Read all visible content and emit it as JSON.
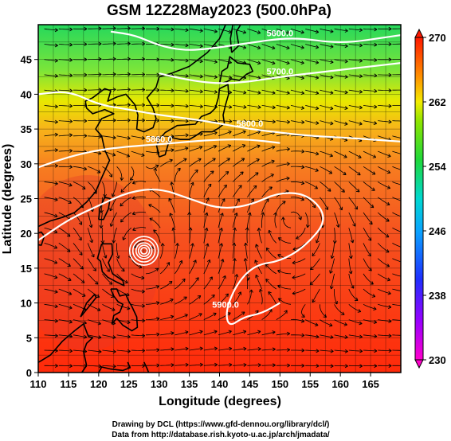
{
  "figure": {
    "title": "GSM 12Z28May2023 (500.0hPa)",
    "xlabel": "Longitude (degrees)",
    "ylabel": "Latitude  (degrees)",
    "credit_line1": "Drawing by DCL (https://www.gfd-dennou.org/library/dcl/)",
    "credit_line2": "Data from http://database.rish.kyoto-u.ac.jp/arch/jmadata/"
  },
  "map": {
    "lon_range": [
      110,
      170
    ],
    "lat_range": [
      0,
      50
    ],
    "lon_ticks": [
      "110",
      "115",
      "120",
      "125",
      "130",
      "135",
      "140",
      "145",
      "150",
      "155",
      "160",
      "165"
    ],
    "lat_ticks": [
      "0",
      "5",
      "10",
      "15",
      "20",
      "25",
      "30",
      "35",
      "40",
      "45"
    ],
    "grid": true,
    "field": "temperature (K) with geopotential height contours and wind streamlines",
    "contours": [
      {
        "label": "5900.0",
        "points": [
          [
            110,
            19
          ],
          [
            115,
            22
          ],
          [
            120,
            24
          ],
          [
            125,
            26
          ],
          [
            130,
            26.5
          ],
          [
            135,
            25
          ],
          [
            140,
            23.5
          ],
          [
            145,
            24
          ],
          [
            150,
            26
          ],
          [
            155,
            25.5
          ],
          [
            158,
            22
          ],
          [
            154,
            18
          ],
          [
            150,
            16
          ],
          [
            146,
            15.5
          ],
          [
            143,
            13
          ],
          [
            141,
            9
          ],
          [
            141.5,
            6.5
          ],
          [
            144,
            8
          ],
          [
            147,
            8.5
          ],
          [
            150,
            10
          ]
        ]
      },
      {
        "label": "5860.0",
        "points": [
          [
            110,
            29.5
          ],
          [
            115,
            31
          ],
          [
            120,
            32
          ],
          [
            125,
            32.5
          ],
          [
            130,
            32.8
          ],
          [
            135,
            33.2
          ],
          [
            140,
            33.5
          ],
          [
            145,
            33.5
          ],
          [
            150,
            33
          ]
        ]
      },
      {
        "label": "5800.0",
        "points": [
          [
            110,
            40
          ],
          [
            115,
            40.5
          ],
          [
            120,
            38.5
          ],
          [
            125,
            37.8
          ],
          [
            130,
            37
          ],
          [
            135,
            36.5
          ],
          [
            140,
            35.8
          ],
          [
            145,
            35
          ],
          [
            150,
            34.5
          ],
          [
            155,
            34
          ],
          [
            160,
            33.8
          ],
          [
            165,
            33.5
          ],
          [
            170,
            33.2
          ]
        ]
      },
      {
        "label": "5700.0",
        "points": [
          [
            130,
            43
          ],
          [
            135,
            42
          ],
          [
            140,
            41.5
          ],
          [
            145,
            41.8
          ],
          [
            150,
            42.5
          ],
          [
            155,
            43
          ],
          [
            160,
            43.5
          ],
          [
            165,
            44
          ],
          [
            170,
            44.5
          ]
        ]
      },
      {
        "label": "5600.0",
        "points": [
          [
            122,
            49
          ],
          [
            126,
            48.5
          ],
          [
            130,
            47
          ],
          [
            134,
            46.3
          ],
          [
            138,
            46.5
          ],
          [
            142,
            47
          ],
          [
            146,
            47.5
          ],
          [
            150,
            48
          ],
          [
            154,
            48
          ],
          [
            158,
            47.5
          ],
          [
            162,
            47.5
          ],
          [
            166,
            48
          ],
          [
            170,
            48.5
          ]
        ]
      }
    ],
    "typhoon_center": [
      127.5,
      17.5
    ]
  },
  "colorbar": {
    "range": [
      230,
      270
    ],
    "tick_labels": [
      "270",
      "262",
      "254",
      "246",
      "238",
      "230"
    ]
  },
  "colors": {
    "warm": "#e8331a",
    "hot": "#ff2200",
    "orange": "#f7651f",
    "yellow": "#f2e800",
    "green": "#2edc3a",
    "cyan": "#00d2c4",
    "blue": "#1f5cff",
    "magenta": "#ff00d6",
    "contour": "#ffffff",
    "coast": "#000000"
  }
}
